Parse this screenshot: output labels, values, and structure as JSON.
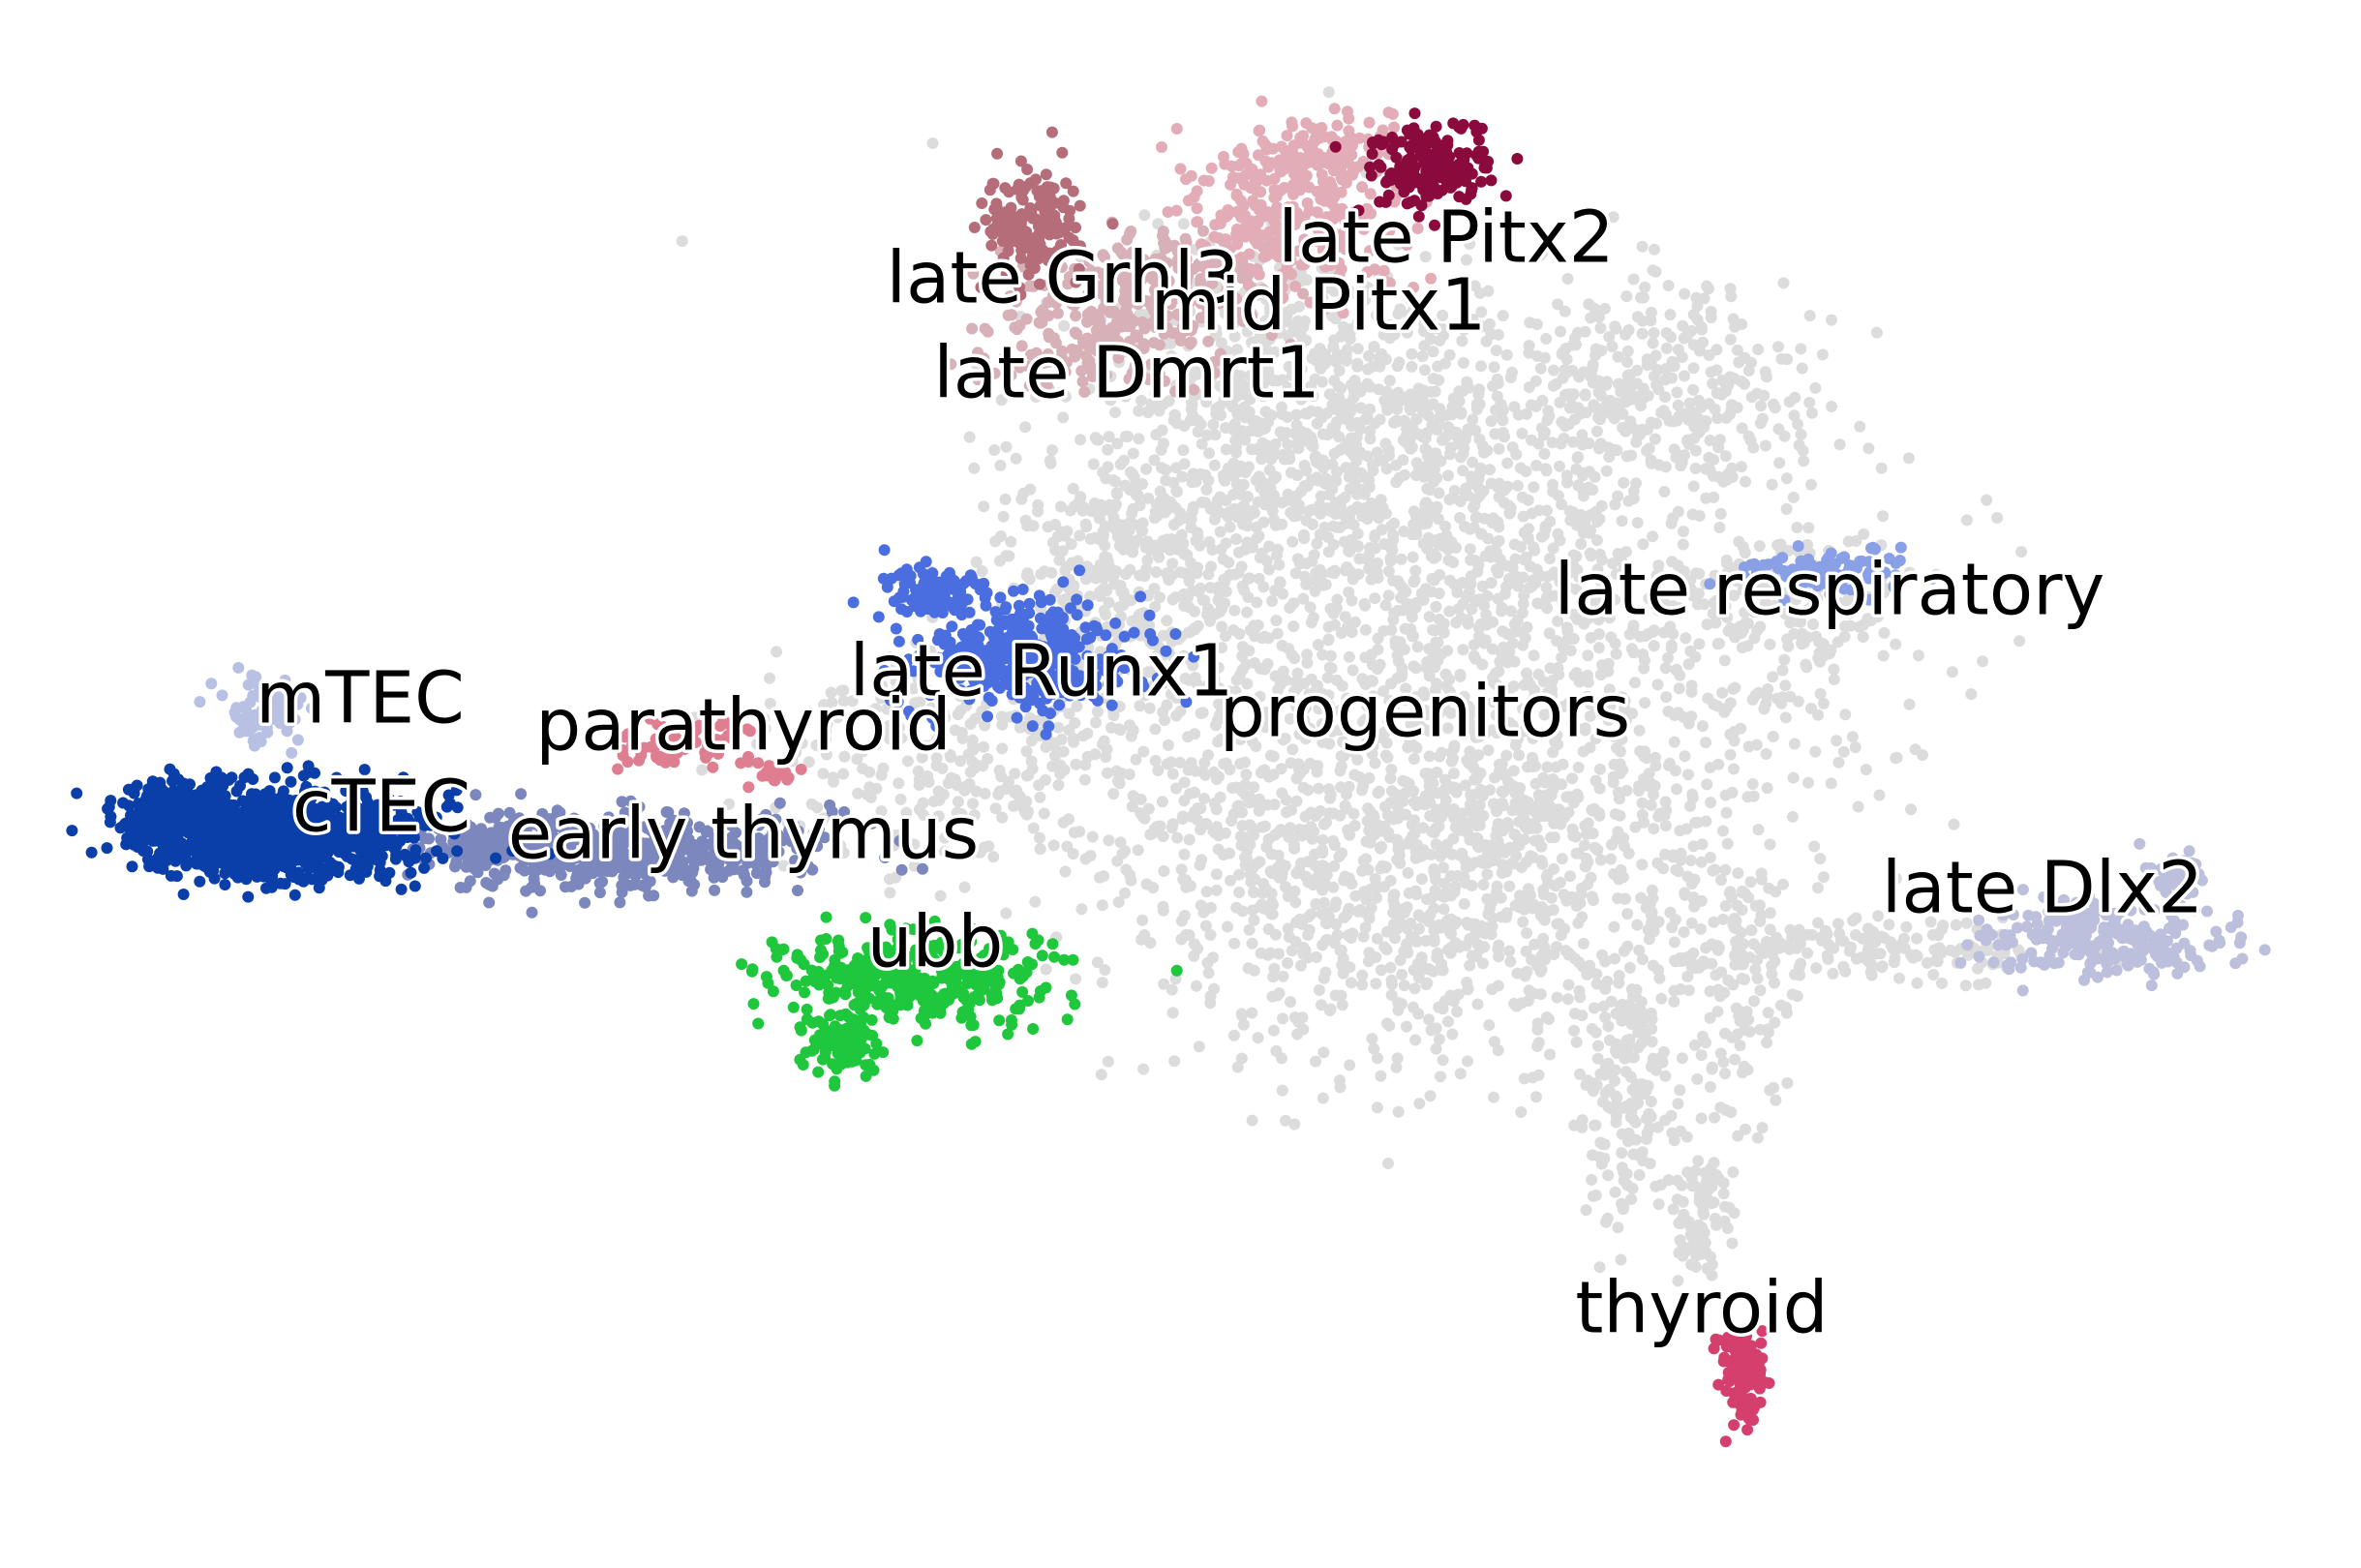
{
  "chart_data": {
    "type": "scatter",
    "title": "",
    "xlabel": "",
    "ylabel": "",
    "axes_visible": false,
    "grid": false,
    "legend": "none",
    "label_style": "on-data, black text with white outline",
    "background_color": "#dcdcdc",
    "clusters": [
      {
        "name": "progenitors",
        "color": "#dcdcdc",
        "label_x": 0.61,
        "label_y": 0.55
      },
      {
        "name": "late Pitx2",
        "color": "#8b0a3d",
        "label_x": 0.62,
        "label_y": 0.9
      },
      {
        "name": "late Grhl3",
        "color": "#b56d7a",
        "label_x": 0.44,
        "label_y": 0.87
      },
      {
        "name": "mid Pitx1",
        "color": "#e3adb8",
        "label_x": 0.56,
        "label_y": 0.85
      },
      {
        "name": "late Dmrt1",
        "color": "#d8b0b8",
        "label_x": 0.47,
        "label_y": 0.8
      },
      {
        "name": "late respiratory",
        "color": "#8aa0e6",
        "label_x": 0.8,
        "label_y": 0.64
      },
      {
        "name": "late Runx1",
        "color": "#4a6ee0",
        "label_x": 0.43,
        "label_y": 0.58
      },
      {
        "name": "mTEC",
        "color": "#b8c0e4",
        "label_x": 0.11,
        "label_y": 0.56
      },
      {
        "name": "parathyroid",
        "color": "#df7e90",
        "label_x": 0.29,
        "label_y": 0.54
      },
      {
        "name": "cTEC",
        "color": "#0a3ea8",
        "label_x": 0.12,
        "label_y": 0.48
      },
      {
        "name": "early thymus",
        "color": "#7b87bd",
        "label_x": 0.29,
        "label_y": 0.46
      },
      {
        "name": "ubb",
        "color": "#1ec73c",
        "label_x": 0.38,
        "label_y": 0.38
      },
      {
        "name": "late Dlx2",
        "color": "#bcc0dc",
        "label_x": 0.9,
        "label_y": 0.42
      },
      {
        "name": "thyroid",
        "color": "#d43f6e",
        "label_x": 0.74,
        "label_y": 0.11
      }
    ]
  }
}
